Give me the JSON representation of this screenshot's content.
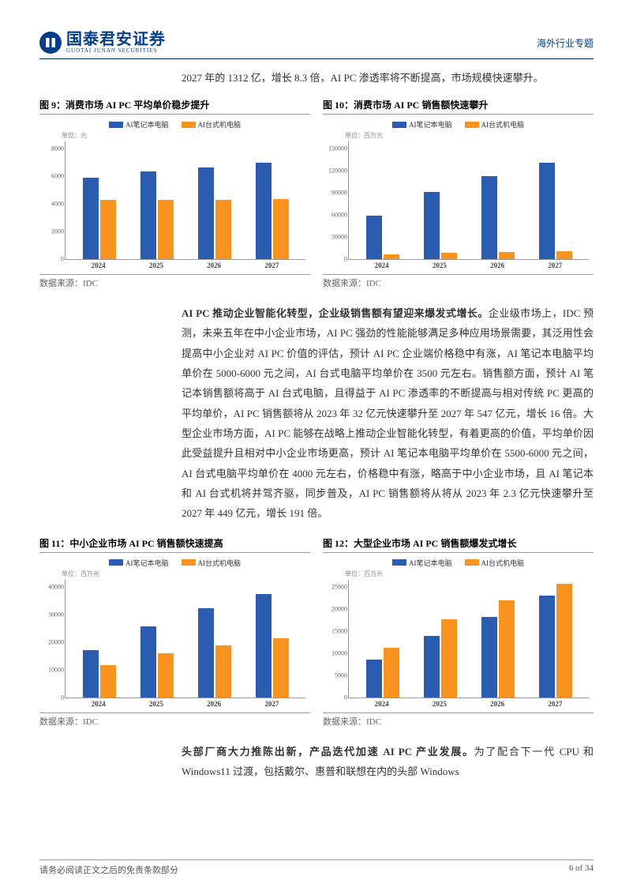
{
  "header": {
    "logo_cn": "国泰君安证券",
    "logo_en": "GUOTAI JUNAN SECURITIES",
    "section": "海外行业专题"
  },
  "intro": "2027 年的 1312 亿，增长 8.3 倍，AI PC 渗透率将不断提高，市场规模快速攀升。",
  "legend": {
    "series1": "AI笔记本电脑",
    "series2": "AI台式机电脑",
    "color1": "#2a5db0",
    "color2": "#f7931e"
  },
  "chart9": {
    "title_prefix": "图 9：",
    "title": "消费市场 AI PC 平均单价稳步提升",
    "unit": "单位：元",
    "ymax": 8000,
    "yticks": [
      "8000",
      "6000",
      "4000",
      "2000",
      "0"
    ],
    "categories": [
      "2024",
      "2025",
      "2026",
      "2027"
    ],
    "series1_values": [
      5500,
      5900,
      6200,
      6500
    ],
    "series2_values": [
      4000,
      4000,
      4000,
      4050
    ],
    "source": "数据来源：IDC"
  },
  "chart10": {
    "title_prefix": "图 10：",
    "title": "消费市场 AI PC 销售额快速攀升",
    "unit": "单位：百万元",
    "ymax": 150000,
    "yticks": [
      "150000",
      "120000",
      "90000",
      "60000",
      "30000",
      "0"
    ],
    "categories": [
      "2024",
      "2025",
      "2026",
      "2027"
    ],
    "series1_values": [
      55000,
      85000,
      105000,
      122000
    ],
    "series2_values": [
      6000,
      8000,
      9000,
      10000
    ],
    "source": "数据来源：IDC"
  },
  "para2_lead": "AI PC 推动企业智能化转型，企业级销售额有望迎来爆发式增长。",
  "para2_body": "企业级市场上，IDC 预测，未来五年在中小企业市场，AI PC 强劲的性能能够满足多种应用场景需要，其泛用性会提高中小企业对 AI PC 价值的评估，预计 AI PC 企业端价格稳中有涨，AI 笔记本电脑平均单价在 5000-6000 元之间，AI 台式电脑平均单价在 3500 元左右。销售额方面，预计 AI 笔记本销售额将高于 AI 台式电脑，且得益于 AI PC 渗透率的不断提高与相对传统 PC 更高的平均单价，AI PC 销售额将从 2023 年 32 亿元快速攀升至 2027 年 547 亿元，增长 16 倍。大型企业市场方面，AI PC 能够在战略上推动企业智能化转型，有着更高的价值，平均单价因此受益提升且相对中小企业市场更高，预计 AI 笔记本电脑平均单价在 5500-6000 元之间，AI 台式电脑平均单价在 4000 元左右，价格稳中有涨，略高于中小企业市场，且 AI 笔记本和 AI 台式机将并驾齐驱，同步普及，AI PC 销售额将从将从 2023 年 2.3 亿元快速攀升至 2027 年 449 亿元，增长 191 倍。",
  "chart11": {
    "title_prefix": "图 11：",
    "title": "中小企业市场 AI PC 销售额快速提高",
    "unit": "单位：百万元",
    "ymax": 40000,
    "yticks": [
      "40000",
      "30000",
      "20000",
      "10000",
      "0"
    ],
    "categories": [
      "2024",
      "2025",
      "2026",
      "2027"
    ],
    "series1_values": [
      16000,
      24000,
      30000,
      35000
    ],
    "series2_values": [
      11000,
      15000,
      17500,
      20000
    ],
    "source": "数据来源：IDC"
  },
  "chart12": {
    "title_prefix": "图 12：",
    "title": "大型企业市场 AI PC 销售额爆发式增长",
    "unit": "单位：百万元",
    "ymax": 25000,
    "yticks": [
      "25000",
      "20000",
      "15000",
      "10000",
      "5000",
      "0"
    ],
    "categories": [
      "2024",
      "2025",
      "2026",
      "2027"
    ],
    "series1_values": [
      8000,
      13000,
      17000,
      21500
    ],
    "series2_values": [
      10500,
      16500,
      20500,
      24000
    ],
    "source": "数据来源：IDC"
  },
  "para3_lead": "头部厂商大力推陈出新，产品迭代加速 AI PC 产业发展。",
  "para3_body": "为了配合下一代 CPU 和 Windows11 过渡，包括戴尔、惠普和联想在内的头部 Windows",
  "footer": {
    "left": "请务必阅读正文之后的免责条款部分",
    "right": "6 of 34"
  }
}
